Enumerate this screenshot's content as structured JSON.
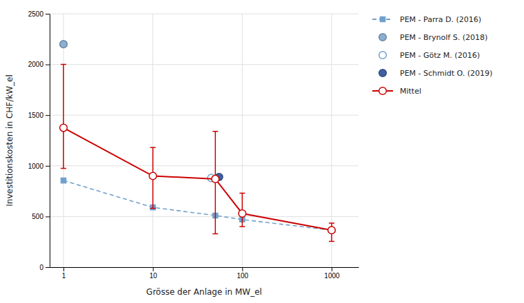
{
  "chart_data": {
    "type": "line",
    "xlabel": "Grösse der Anlage in MW_el",
    "ylabel": "Investitionskosten in CHF/kW_el",
    "log": "x",
    "xlim": [
      0.7,
      2000
    ],
    "xticks": [
      1,
      10,
      100,
      1000
    ],
    "ylim": [
      0,
      2500
    ],
    "yticks": [
      0,
      500,
      1000,
      1500,
      2000,
      2500
    ],
    "grid": true,
    "legend": "right",
    "series": [
      {
        "name": "PEM - Parra D. (2016)",
        "type": "line",
        "color": "#70A0CC",
        "marker": "square",
        "line_style": "dashed",
        "x": [
          1,
          10,
          50,
          100,
          1000
        ],
        "values": [
          855,
          590,
          510,
          470,
          365
        ]
      },
      {
        "name": "PEM - Brynolf S. (2018)",
        "type": "scatter",
        "color": "#8BAFD0",
        "marker": "circle",
        "x": [
          1
        ],
        "values": [
          2200
        ]
      },
      {
        "name": "PEM - Götz M. (2016)",
        "type": "scatter",
        "color": "#70A0CC",
        "marker": "circle-open",
        "x": [
          45
        ],
        "values": [
          880
        ]
      },
      {
        "name": "PEM - Schmidt O. (2019)",
        "type": "scatter",
        "color": "#4060A0",
        "marker": "circle",
        "x": [
          55
        ],
        "values": [
          890
        ]
      },
      {
        "name": "Mittel",
        "type": "line",
        "color": "#CC0000",
        "marker": "circle-open",
        "line_style": "solid",
        "x": [
          1,
          10,
          50,
          100,
          1000
        ],
        "values": [
          1375,
          900,
          870,
          530,
          365
        ],
        "error_low": [
          400,
          320,
          540,
          130,
          110
        ],
        "error_high": [
          625,
          280,
          470,
          200,
          70
        ]
      }
    ]
  }
}
